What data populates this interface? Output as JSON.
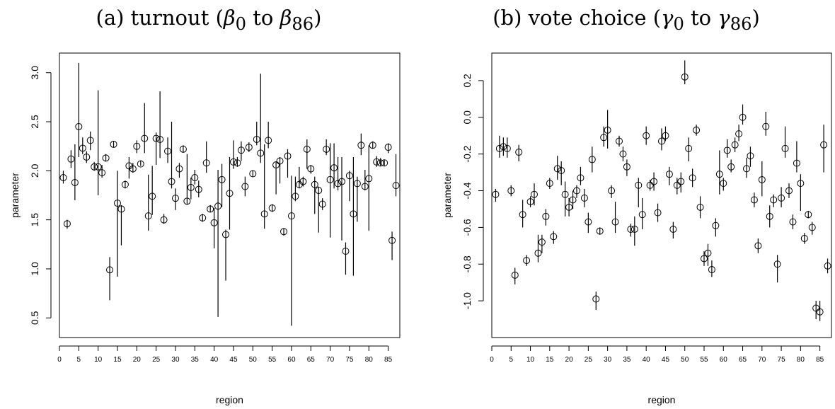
{
  "chart_data": [
    {
      "type": "scatter",
      "title_parts": {
        "prefix": "(a) turnout (",
        "sym0": "β",
        "sub0": "0",
        "mid": " to ",
        "sym1": "β",
        "sub1": "86",
        "suffix": ")"
      },
      "xlabel": "region",
      "ylabel": "parameter",
      "xlim": [
        0,
        88
      ],
      "ylim": [
        0.3,
        3.2
      ],
      "xticks": [
        0,
        5,
        10,
        15,
        20,
        25,
        30,
        35,
        40,
        45,
        50,
        55,
        60,
        65,
        70,
        75,
        80,
        85
      ],
      "yticks": [
        "0.5",
        "1.0",
        "1.5",
        "2.0",
        "2.5",
        "3.0"
      ],
      "points": [
        {
          "x": 1,
          "y": 1.93,
          "lo": 1.87,
          "hi": 2.0
        },
        {
          "x": 2,
          "y": 1.46,
          "lo": 1.41,
          "hi": 1.5
        },
        {
          "x": 3,
          "y": 2.12,
          "lo": 2.03,
          "hi": 2.21
        },
        {
          "x": 4,
          "y": 1.88,
          "lo": 1.7,
          "hi": 2.27
        },
        {
          "x": 5,
          "y": 2.45,
          "lo": 2.14,
          "hi": 3.1
        },
        {
          "x": 6,
          "y": 2.23,
          "lo": 2.17,
          "hi": 2.34
        },
        {
          "x": 7,
          "y": 2.14,
          "lo": 2.08,
          "hi": 2.2
        },
        {
          "x": 8,
          "y": 2.31,
          "lo": 2.21,
          "hi": 2.4
        },
        {
          "x": 9,
          "y": 2.04,
          "lo": 2.0,
          "hi": 2.09
        },
        {
          "x": 10,
          "y": 2.04,
          "lo": 1.75,
          "hi": 2.82
        },
        {
          "x": 11,
          "y": 1.98,
          "lo": 1.93,
          "hi": 2.06
        },
        {
          "x": 12,
          "y": 2.13,
          "lo": 2.1,
          "hi": 2.17
        },
        {
          "x": 13,
          "y": 0.99,
          "lo": 0.68,
          "hi": 1.12
        },
        {
          "x": 14,
          "y": 2.27,
          "lo": 2.24,
          "hi": 2.3
        },
        {
          "x": 15,
          "y": 1.67,
          "lo": 0.92,
          "hi": 2.0
        },
        {
          "x": 16,
          "y": 1.61,
          "lo": 1.24,
          "hi": 1.65
        },
        {
          "x": 17,
          "y": 1.86,
          "lo": 1.82,
          "hi": 1.9
        },
        {
          "x": 18,
          "y": 2.05,
          "lo": 1.92,
          "hi": 2.14
        },
        {
          "x": 19,
          "y": 2.02,
          "lo": 1.98,
          "hi": 2.08
        },
        {
          "x": 20,
          "y": 2.25,
          "lo": 2.18,
          "hi": 2.31
        },
        {
          "x": 21,
          "y": 2.07,
          "lo": 2.05,
          "hi": 2.1
        },
        {
          "x": 22,
          "y": 2.33,
          "lo": 2.18,
          "hi": 2.69
        },
        {
          "x": 23,
          "y": 1.54,
          "lo": 1.39,
          "hi": 1.96
        },
        {
          "x": 24,
          "y": 1.74,
          "lo": 1.55,
          "hi": 2.05
        },
        {
          "x": 25,
          "y": 2.33,
          "lo": 2.06,
          "hi": 2.39
        },
        {
          "x": 26,
          "y": 2.32,
          "lo": 2.13,
          "hi": 2.81
        },
        {
          "x": 27,
          "y": 1.5,
          "lo": 1.46,
          "hi": 1.56
        },
        {
          "x": 28,
          "y": 2.2,
          "lo": 2.08,
          "hi": 2.34
        },
        {
          "x": 29,
          "y": 1.89,
          "lo": 1.82,
          "hi": 2.5
        },
        {
          "x": 30,
          "y": 1.72,
          "lo": 1.6,
          "hi": 1.82
        },
        {
          "x": 31,
          "y": 2.02,
          "lo": 1.93,
          "hi": 2.08
        },
        {
          "x": 32,
          "y": 2.22,
          "lo": 2.19,
          "hi": 2.26
        },
        {
          "x": 33,
          "y": 1.69,
          "lo": 1.66,
          "hi": 2.17
        },
        {
          "x": 34,
          "y": 1.83,
          "lo": 1.71,
          "hi": 1.93
        },
        {
          "x": 35,
          "y": 1.93,
          "lo": 1.86,
          "hi": 2.01
        },
        {
          "x": 36,
          "y": 1.81,
          "lo": 1.73,
          "hi": 1.9
        },
        {
          "x": 37,
          "y": 1.52,
          "lo": 1.48,
          "hi": 1.56
        },
        {
          "x": 38,
          "y": 2.08,
          "lo": 1.98,
          "hi": 2.3
        },
        {
          "x": 39,
          "y": 1.61,
          "lo": 1.58,
          "hi": 1.65
        },
        {
          "x": 40,
          "y": 1.47,
          "lo": 1.21,
          "hi": 1.62
        },
        {
          "x": 41,
          "y": 1.64,
          "lo": 0.51,
          "hi": 2.01
        },
        {
          "x": 42,
          "y": 1.91,
          "lo": 1.63,
          "hi": 2.07
        },
        {
          "x": 43,
          "y": 1.35,
          "lo": 0.88,
          "hi": 1.4
        },
        {
          "x": 44,
          "y": 1.77,
          "lo": 1.4,
          "hi": 2.14
        },
        {
          "x": 45,
          "y": 2.09,
          "lo": 2.02,
          "hi": 2.31
        },
        {
          "x": 46,
          "y": 2.08,
          "lo": 2.04,
          "hi": 2.14
        },
        {
          "x": 47,
          "y": 2.21,
          "lo": 2.1,
          "hi": 2.3
        },
        {
          "x": 48,
          "y": 1.84,
          "lo": 1.74,
          "hi": 1.94
        },
        {
          "x": 49,
          "y": 2.24,
          "lo": 2.19,
          "hi": 2.29
        },
        {
          "x": 50,
          "y": 1.97,
          "lo": 1.94,
          "hi": 2.0
        },
        {
          "x": 51,
          "y": 2.32,
          "lo": 2.26,
          "hi": 2.5
        },
        {
          "x": 52,
          "y": 2.18,
          "lo": 2.08,
          "hi": 2.99
        },
        {
          "x": 53,
          "y": 1.56,
          "lo": 1.41,
          "hi": 2.27
        },
        {
          "x": 54,
          "y": 2.31,
          "lo": 2.23,
          "hi": 2.5
        },
        {
          "x": 55,
          "y": 1.62,
          "lo": 1.58,
          "hi": 1.66
        },
        {
          "x": 56,
          "y": 2.06,
          "lo": 1.76,
          "hi": 2.09
        },
        {
          "x": 57,
          "y": 2.1,
          "lo": 1.87,
          "hi": 2.14
        },
        {
          "x": 58,
          "y": 1.38,
          "lo": 1.34,
          "hi": 1.41
        },
        {
          "x": 59,
          "y": 2.15,
          "lo": 1.93,
          "hi": 2.22
        },
        {
          "x": 60,
          "y": 1.54,
          "lo": 0.42,
          "hi": 1.95
        },
        {
          "x": 61,
          "y": 1.74,
          "lo": 1.69,
          "hi": 1.94
        },
        {
          "x": 62,
          "y": 1.86,
          "lo": 1.82,
          "hi": 2.04
        },
        {
          "x": 63,
          "y": 1.89,
          "lo": 1.84,
          "hi": 1.94
        },
        {
          "x": 64,
          "y": 2.22,
          "lo": 2.02,
          "hi": 2.32
        },
        {
          "x": 65,
          "y": 2.02,
          "lo": 1.97,
          "hi": 2.06
        },
        {
          "x": 66,
          "y": 1.86,
          "lo": 1.56,
          "hi": 1.94
        },
        {
          "x": 67,
          "y": 1.8,
          "lo": 1.37,
          "hi": 1.84
        },
        {
          "x": 68,
          "y": 1.66,
          "lo": 1.6,
          "hi": 1.72
        },
        {
          "x": 69,
          "y": 2.22,
          "lo": 2.16,
          "hi": 2.32
        },
        {
          "x": 70,
          "y": 1.91,
          "lo": 1.32,
          "hi": 2.28
        },
        {
          "x": 71,
          "y": 2.03,
          "lo": 1.82,
          "hi": 2.28
        },
        {
          "x": 72,
          "y": 1.87,
          "lo": 1.8,
          "hi": 2.14
        },
        {
          "x": 73,
          "y": 1.89,
          "lo": 1.29,
          "hi": 2.14
        },
        {
          "x": 74,
          "y": 1.18,
          "lo": 0.94,
          "hi": 1.27
        },
        {
          "x": 75,
          "y": 1.95,
          "lo": 1.69,
          "hi": 2.0
        },
        {
          "x": 76,
          "y": 1.56,
          "lo": 0.93,
          "hi": 2.14
        },
        {
          "x": 77,
          "y": 1.87,
          "lo": 1.48,
          "hi": 1.94
        },
        {
          "x": 78,
          "y": 2.26,
          "lo": 2.16,
          "hi": 2.38
        },
        {
          "x": 79,
          "y": 1.84,
          "lo": 1.8,
          "hi": 2.01
        },
        {
          "x": 80,
          "y": 1.92,
          "lo": 1.39,
          "hi": 2.26
        },
        {
          "x": 81,
          "y": 2.26,
          "lo": 2.23,
          "hi": 2.3
        },
        {
          "x": 82,
          "y": 2.09,
          "lo": 2.04,
          "hi": 2.15
        },
        {
          "x": 83,
          "y": 2.08,
          "lo": 2.05,
          "hi": 2.13
        },
        {
          "x": 84,
          "y": 2.08,
          "lo": 2.05,
          "hi": 2.11
        },
        {
          "x": 85,
          "y": 2.24,
          "lo": 2.18,
          "hi": 2.28
        },
        {
          "x": 86,
          "y": 1.29,
          "lo": 1.09,
          "hi": 1.38
        },
        {
          "x": 87,
          "y": 1.85,
          "lo": 1.74,
          "hi": 2.17
        }
      ]
    },
    {
      "type": "scatter",
      "title_parts": {
        "prefix": "(b) vote choice (",
        "sym0": "γ",
        "sub0": "0",
        "mid": " to ",
        "sym1": "γ",
        "sub1": "86",
        "suffix": ")"
      },
      "xlabel": "region",
      "ylabel": "parameter",
      "xlim": [
        0,
        88
      ],
      "ylim": [
        -1.2,
        0.35
      ],
      "xticks": [
        0,
        5,
        10,
        15,
        20,
        25,
        30,
        35,
        40,
        45,
        50,
        55,
        60,
        65,
        70,
        75,
        80,
        85
      ],
      "yticks": [
        "-1.0",
        "-0.8",
        "-0.6",
        "-0.4",
        "-0.2",
        "0.0",
        "0.2"
      ],
      "points": [
        {
          "x": 1,
          "y": -0.42,
          "lo": -0.46,
          "hi": -0.39
        },
        {
          "x": 2,
          "y": -0.17,
          "lo": -0.22,
          "hi": -0.1
        },
        {
          "x": 3,
          "y": -0.16,
          "lo": -0.21,
          "hi": -0.11
        },
        {
          "x": 4,
          "y": -0.17,
          "lo": -0.22,
          "hi": -0.11
        },
        {
          "x": 5,
          "y": -0.4,
          "lo": -0.43,
          "hi": -0.37
        },
        {
          "x": 6,
          "y": -0.86,
          "lo": -0.91,
          "hi": -0.82
        },
        {
          "x": 7,
          "y": -0.19,
          "lo": -0.24,
          "hi": -0.15
        },
        {
          "x": 8,
          "y": -0.53,
          "lo": -0.6,
          "hi": -0.45
        },
        {
          "x": 9,
          "y": -0.78,
          "lo": -0.81,
          "hi": -0.75
        },
        {
          "x": 10,
          "y": -0.46,
          "lo": -0.49,
          "hi": -0.43
        },
        {
          "x": 11,
          "y": -0.42,
          "lo": -0.48,
          "hi": -0.36
        },
        {
          "x": 12,
          "y": -0.74,
          "lo": -0.79,
          "hi": -0.64
        },
        {
          "x": 13,
          "y": -0.68,
          "lo": -0.74,
          "hi": -0.64
        },
        {
          "x": 14,
          "y": -0.54,
          "lo": -0.59,
          "hi": -0.5
        },
        {
          "x": 15,
          "y": -0.36,
          "lo": -0.39,
          "hi": -0.33
        },
        {
          "x": 16,
          "y": -0.65,
          "lo": -0.69,
          "hi": -0.62
        },
        {
          "x": 17,
          "y": -0.28,
          "lo": -0.34,
          "hi": -0.21
        },
        {
          "x": 18,
          "y": -0.29,
          "lo": -0.37,
          "hi": -0.24
        },
        {
          "x": 19,
          "y": -0.42,
          "lo": -0.54,
          "hi": -0.35
        },
        {
          "x": 20,
          "y": -0.49,
          "lo": -0.54,
          "hi": -0.44
        },
        {
          "x": 21,
          "y": -0.45,
          "lo": -0.5,
          "hi": -0.4
        },
        {
          "x": 22,
          "y": -0.4,
          "lo": -0.44,
          "hi": -0.37
        },
        {
          "x": 23,
          "y": -0.33,
          "lo": -0.37,
          "hi": -0.27
        },
        {
          "x": 24,
          "y": -0.44,
          "lo": -0.49,
          "hi": -0.39
        },
        {
          "x": 25,
          "y": -0.57,
          "lo": -0.63,
          "hi": -0.52
        },
        {
          "x": 26,
          "y": -0.23,
          "lo": -0.3,
          "hi": -0.16
        },
        {
          "x": 27,
          "y": -0.99,
          "lo": -1.05,
          "hi": -0.95
        },
        {
          "x": 28,
          "y": -0.62,
          "lo": -0.64,
          "hi": -0.6
        },
        {
          "x": 29,
          "y": -0.11,
          "lo": -0.16,
          "hi": -0.05
        },
        {
          "x": 30,
          "y": -0.07,
          "lo": -0.17,
          "hi": 0.04
        },
        {
          "x": 31,
          "y": -0.4,
          "lo": -0.44,
          "hi": -0.37
        },
        {
          "x": 32,
          "y": -0.57,
          "lo": -0.63,
          "hi": -0.46
        },
        {
          "x": 33,
          "y": -0.13,
          "lo": -0.16,
          "hi": -0.1
        },
        {
          "x": 34,
          "y": -0.2,
          "lo": -0.24,
          "hi": -0.16
        },
        {
          "x": 35,
          "y": -0.27,
          "lo": -0.32,
          "hi": -0.23
        },
        {
          "x": 36,
          "y": -0.61,
          "lo": -0.65,
          "hi": -0.58
        },
        {
          "x": 37,
          "y": -0.61,
          "lo": -0.7,
          "hi": -0.54
        },
        {
          "x": 38,
          "y": -0.37,
          "lo": -0.49,
          "hi": -0.33
        },
        {
          "x": 39,
          "y": -0.53,
          "lo": -0.61,
          "hi": -0.44
        },
        {
          "x": 40,
          "y": -0.1,
          "lo": -0.15,
          "hi": -0.05
        },
        {
          "x": 41,
          "y": -0.37,
          "lo": -0.4,
          "hi": -0.34
        },
        {
          "x": 42,
          "y": -0.35,
          "lo": -0.4,
          "hi": -0.3
        },
        {
          "x": 43,
          "y": -0.52,
          "lo": -0.57,
          "hi": -0.47
        },
        {
          "x": 44,
          "y": -0.13,
          "lo": -0.18,
          "hi": -0.06
        },
        {
          "x": 45,
          "y": -0.1,
          "lo": -0.13,
          "hi": -0.05
        },
        {
          "x": 46,
          "y": -0.31,
          "lo": -0.37,
          "hi": -0.27
        },
        {
          "x": 47,
          "y": -0.61,
          "lo": -0.66,
          "hi": -0.57
        },
        {
          "x": 48,
          "y": -0.37,
          "lo": -0.42,
          "hi": -0.33
        },
        {
          "x": 49,
          "y": -0.35,
          "lo": -0.41,
          "hi": -0.3
        },
        {
          "x": 50,
          "y": 0.22,
          "lo": 0.18,
          "hi": 0.31
        },
        {
          "x": 51,
          "y": -0.17,
          "lo": -0.24,
          "hi": -0.11
        },
        {
          "x": 52,
          "y": -0.33,
          "lo": -0.38,
          "hi": -0.28
        },
        {
          "x": 53,
          "y": -0.07,
          "lo": -0.1,
          "hi": -0.04
        },
        {
          "x": 54,
          "y": -0.49,
          "lo": -0.55,
          "hi": -0.43
        },
        {
          "x": 55,
          "y": -0.77,
          "lo": -0.81,
          "hi": -0.73
        },
        {
          "x": 56,
          "y": -0.74,
          "lo": -0.81,
          "hi": -0.69
        },
        {
          "x": 57,
          "y": -0.83,
          "lo": -0.87,
          "hi": -0.78
        },
        {
          "x": 58,
          "y": -0.59,
          "lo": -0.65,
          "hi": -0.55
        },
        {
          "x": 59,
          "y": -0.31,
          "lo": -0.42,
          "hi": -0.18
        },
        {
          "x": 60,
          "y": -0.36,
          "lo": -0.4,
          "hi": -0.33
        },
        {
          "x": 61,
          "y": -0.18,
          "lo": -0.22,
          "hi": -0.12
        },
        {
          "x": 62,
          "y": -0.27,
          "lo": -0.3,
          "hi": -0.23
        },
        {
          "x": 63,
          "y": -0.15,
          "lo": -0.19,
          "hi": -0.11
        },
        {
          "x": 64,
          "y": -0.09,
          "lo": -0.13,
          "hi": -0.04
        },
        {
          "x": 65,
          "y": 0.0,
          "lo": -0.04,
          "hi": 0.07
        },
        {
          "x": 66,
          "y": -0.28,
          "lo": -0.33,
          "hi": -0.22
        },
        {
          "x": 67,
          "y": -0.21,
          "lo": -0.27,
          "hi": -0.16
        },
        {
          "x": 68,
          "y": -0.45,
          "lo": -0.49,
          "hi": -0.41
        },
        {
          "x": 69,
          "y": -0.7,
          "lo": -0.74,
          "hi": -0.66
        },
        {
          "x": 70,
          "y": -0.34,
          "lo": -0.43,
          "hi": -0.24
        },
        {
          "x": 71,
          "y": -0.05,
          "lo": -0.1,
          "hi": 0.03
        },
        {
          "x": 72,
          "y": -0.54,
          "lo": -0.6,
          "hi": -0.48
        },
        {
          "x": 73,
          "y": -0.45,
          "lo": -0.49,
          "hi": -0.42
        },
        {
          "x": 74,
          "y": -0.8,
          "lo": -0.9,
          "hi": -0.75
        },
        {
          "x": 75,
          "y": -0.44,
          "lo": -0.49,
          "hi": -0.38
        },
        {
          "x": 76,
          "y": -0.17,
          "lo": -0.22,
          "hi": -0.05
        },
        {
          "x": 77,
          "y": -0.4,
          "lo": -0.44,
          "hi": -0.36
        },
        {
          "x": 78,
          "y": -0.57,
          "lo": -0.61,
          "hi": -0.53
        },
        {
          "x": 79,
          "y": -0.25,
          "lo": -0.3,
          "hi": -0.13
        },
        {
          "x": 80,
          "y": -0.36,
          "lo": -0.51,
          "hi": -0.31
        },
        {
          "x": 81,
          "y": -0.66,
          "lo": -0.69,
          "hi": -0.63
        },
        {
          "x": 82,
          "y": -0.53,
          "lo": -0.55,
          "hi": -0.51
        },
        {
          "x": 83,
          "y": -0.6,
          "lo": -0.64,
          "hi": -0.57
        },
        {
          "x": 84,
          "y": -1.04,
          "lo": -1.1,
          "hi": -1.0
        },
        {
          "x": 85,
          "y": -1.06,
          "lo": -1.11,
          "hi": -1.0
        },
        {
          "x": 86,
          "y": -0.15,
          "lo": -0.3,
          "hi": -0.04
        },
        {
          "x": 87,
          "y": -0.81,
          "lo": -0.85,
          "hi": -0.77
        }
      ]
    }
  ]
}
